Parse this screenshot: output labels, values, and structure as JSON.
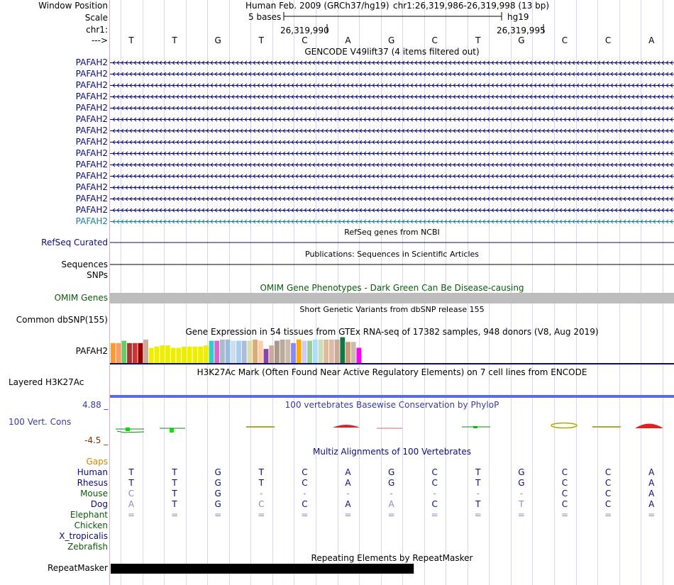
{
  "header": {
    "window_position_label": "Window Position",
    "assembly": "Human Feb. 2009 (GRCh37/hg19)",
    "coords": "chr1:26,319,986-26,319,998 (13 bp)",
    "scale_label": "Scale",
    "scale_text": "5 bases",
    "scale_db": "hg19",
    "chrom_label": "chr1:",
    "pos_left": "26,319,990",
    "pos_right": "26,319,995",
    "strand_label": "--->"
  },
  "bases": [
    "T",
    "T",
    "G",
    "T",
    "C",
    "A",
    "G",
    "C",
    "T",
    "G",
    "C",
    "C",
    "A"
  ],
  "gencode": {
    "title": "GENCODE V49lift37 (4 items filtered out)",
    "items": [
      "PAFAH2",
      "PAFAH2",
      "PAFAH2",
      "PAFAH2",
      "PAFAH2",
      "PAFAH2",
      "PAFAH2",
      "PAFAH2",
      "PAFAH2",
      "PAFAH2",
      "PAFAH2",
      "PAFAH2",
      "PAFAH2",
      "PAFAH2",
      "PAFAH2"
    ],
    "color": "#0c0c78",
    "last_color": "#1a7e9a"
  },
  "refseq": {
    "title": "RefSeq genes from NCBI",
    "label": "RefSeq Curated"
  },
  "pubs": {
    "title": "Publications: Sequences in Scientific Articles",
    "label": "Sequences"
  },
  "snps": {
    "label": "SNPs"
  },
  "omim": {
    "title": "OMIM Gene Phenotypes - Dark Green Can Be Disease-causing",
    "label": "OMIM Genes",
    "color": "#0b5a0b"
  },
  "dbsnp": {
    "title": "Short Genetic Variants from dbSNP release 155",
    "label": "Common dbSNP(155)"
  },
  "gtex": {
    "title": "Gene Expression in 54 tissues from GTEx RNA-seq of 17382 samples, 948 donors (V8, Aug 2019)",
    "label": "PAFAH2",
    "bars": [
      {
        "v": 0.85,
        "c": "#ff9933"
      },
      {
        "v": 0.85,
        "c": "#ff9966"
      },
      {
        "v": 0.95,
        "c": "#66cc66"
      },
      {
        "v": 0.85,
        "c": "#aa3333"
      },
      {
        "v": 0.85,
        "c": "#cc3333"
      },
      {
        "v": 0.85,
        "c": "#990000"
      },
      {
        "v": 1.0,
        "c": "#ccaa99"
      },
      {
        "v": 0.65,
        "c": "#eeee00"
      },
      {
        "v": 0.7,
        "c": "#eeee00"
      },
      {
        "v": 0.75,
        "c": "#eeee00"
      },
      {
        "v": 0.75,
        "c": "#eeee00"
      },
      {
        "v": 0.65,
        "c": "#eeee00"
      },
      {
        "v": 0.65,
        "c": "#eeee00"
      },
      {
        "v": 0.7,
        "c": "#eeee00"
      },
      {
        "v": 0.7,
        "c": "#eeee00"
      },
      {
        "v": 0.7,
        "c": "#eeee00"
      },
      {
        "v": 0.7,
        "c": "#eeee00"
      },
      {
        "v": 0.75,
        "c": "#eeee00"
      },
      {
        "v": 0.95,
        "c": "#33cccc"
      },
      {
        "v": 0.95,
        "c": "#dd66cc"
      },
      {
        "v": 1.0,
        "c": "#aabbcc"
      },
      {
        "v": 1.0,
        "c": "#99bbdd"
      },
      {
        "v": 0.95,
        "c": "#ccddee"
      },
      {
        "v": 0.95,
        "c": "#aaccee"
      },
      {
        "v": 0.95,
        "c": "#aabbdd"
      },
      {
        "v": 0.95,
        "c": "#ddddaa"
      },
      {
        "v": 1.0,
        "c": "#ddaa77"
      },
      {
        "v": 0.95,
        "c": "#ffccaa"
      },
      {
        "v": 0.6,
        "c": "#8844aa"
      },
      {
        "v": 0.75,
        "c": "#ccaa99"
      },
      {
        "v": 0.95,
        "c": "#aa9988"
      },
      {
        "v": 1.0,
        "c": "#bbaa99"
      },
      {
        "v": 1.0,
        "c": "#ccbbaa"
      },
      {
        "v": 0.85,
        "c": "#8888ff"
      },
      {
        "v": 1.0,
        "c": "#ffaa00"
      },
      {
        "v": 0.95,
        "c": "#ccccff"
      },
      {
        "v": 0.95,
        "c": "#99cc99"
      },
      {
        "v": 1.0,
        "c": "#aaddff"
      },
      {
        "v": 1.0,
        "c": "#ccddbb"
      },
      {
        "v": 1.0,
        "c": "#ddbb99"
      },
      {
        "v": 1.0,
        "c": "#ddbbaa"
      },
      {
        "v": 1.0,
        "c": "#ccaa99"
      },
      {
        "v": 1.1,
        "c": "#117744"
      },
      {
        "v": 0.9,
        "c": "#cc9977"
      },
      {
        "v": 0.9,
        "c": "#ccbbaa"
      },
      {
        "v": 0.65,
        "c": "#ff00ff"
      }
    ]
  },
  "h3k27ac": {
    "title": "H3K27Ac Mark (Often Found Near Active Regulatory Elements) on 7 cell lines from ENCODE",
    "label": "Layered H3K27Ac"
  },
  "phylop": {
    "title": "100 vertebrates Basewise Conservation by PhyloP",
    "label": "100 Vert. Cons",
    "max": "4.88 _",
    "min": "-4.5 _",
    "title_color": "#3b3b9a",
    "max_color": "#3b3b9a",
    "min_color": "#8b2b00"
  },
  "multiz": {
    "title": "Multiz Alignments of 100 Vertebrates",
    "title_color": "#0c0c78",
    "gaps_label": "Gaps",
    "gaps_color": "#cc8800",
    "species": [
      {
        "name": "Human",
        "color": "#0c0c78",
        "bases": [
          "T",
          "T",
          "G",
          "T",
          "C",
          "A",
          "G",
          "C",
          "T",
          "G",
          "C",
          "C",
          "A"
        ]
      },
      {
        "name": "Rhesus",
        "color": "#0c0c78",
        "bases": [
          "T",
          "T",
          "G",
          "T",
          "C",
          "A",
          "G",
          "C",
          "T",
          "G",
          "C",
          "C",
          "A"
        ]
      },
      {
        "name": "Mouse",
        "color": "#0b5a0b",
        "bases": [
          "C",
          "T",
          "G",
          "-",
          "-",
          "-",
          "-",
          "-",
          "-",
          "-",
          "C",
          "C",
          "A"
        ]
      },
      {
        "name": "Dog",
        "color": "#0c0c78",
        "bases": [
          "A",
          "T",
          "G",
          "C",
          "C",
          "A",
          "A",
          "C",
          "T",
          "T",
          "C",
          "C",
          "A"
        ]
      },
      {
        "name": "Elephant",
        "color": "#0b5a0b",
        "bases": [
          "=",
          "=",
          "=",
          "=",
          "=",
          "=",
          "=",
          "=",
          "=",
          "=",
          "=",
          "=",
          "="
        ]
      },
      {
        "name": "Chicken",
        "color": "#0b5a0b",
        "bases": []
      },
      {
        "name": "X_tropicalis",
        "color": "#0c0c78",
        "bases": []
      },
      {
        "name": "Zebrafish",
        "color": "#0b5a0b",
        "bases": []
      }
    ],
    "faded": {
      "Mouse": [
        0,
        3,
        4,
        5,
        6,
        7,
        8,
        9
      ],
      "Dog": [
        0,
        3,
        6,
        9
      ],
      "Elephant": [
        0,
        1,
        2,
        3,
        4,
        5,
        6,
        7,
        8,
        9,
        10,
        11,
        12
      ]
    }
  },
  "repeatmasker": {
    "title": "Repeating Elements by RepeatMasker",
    "label": "RepeatMasker",
    "extent_bases": 7
  }
}
